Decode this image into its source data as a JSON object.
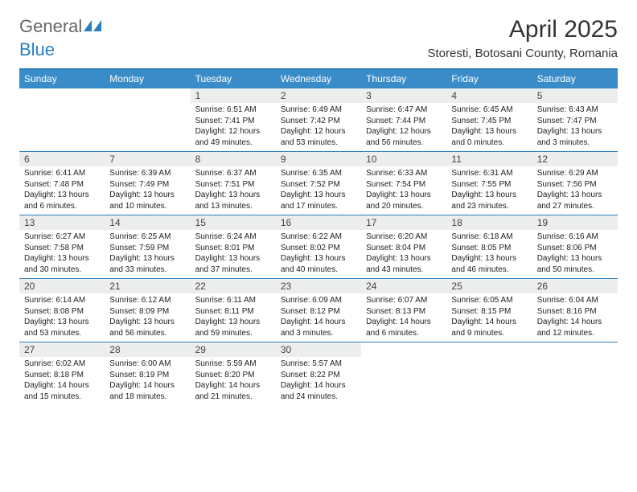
{
  "logo": {
    "text1": "General",
    "text2": "Blue"
  },
  "title": "April 2025",
  "location": "Storesti, Botosani County, Romania",
  "colors": {
    "header_bg": "#3a8cc9",
    "border": "#2a7fbf",
    "daynum_bg": "#eceded",
    "text": "#222222"
  },
  "weekdays": [
    "Sunday",
    "Monday",
    "Tuesday",
    "Wednesday",
    "Thursday",
    "Friday",
    "Saturday"
  ],
  "weeks": [
    [
      {
        "empty": true
      },
      {
        "empty": true
      },
      {
        "n": "1",
        "sr": "Sunrise: 6:51 AM",
        "ss": "Sunset: 7:41 PM",
        "dl": "Daylight: 12 hours and 49 minutes."
      },
      {
        "n": "2",
        "sr": "Sunrise: 6:49 AM",
        "ss": "Sunset: 7:42 PM",
        "dl": "Daylight: 12 hours and 53 minutes."
      },
      {
        "n": "3",
        "sr": "Sunrise: 6:47 AM",
        "ss": "Sunset: 7:44 PM",
        "dl": "Daylight: 12 hours and 56 minutes."
      },
      {
        "n": "4",
        "sr": "Sunrise: 6:45 AM",
        "ss": "Sunset: 7:45 PM",
        "dl": "Daylight: 13 hours and 0 minutes."
      },
      {
        "n": "5",
        "sr": "Sunrise: 6:43 AM",
        "ss": "Sunset: 7:47 PM",
        "dl": "Daylight: 13 hours and 3 minutes."
      }
    ],
    [
      {
        "n": "6",
        "sr": "Sunrise: 6:41 AM",
        "ss": "Sunset: 7:48 PM",
        "dl": "Daylight: 13 hours and 6 minutes."
      },
      {
        "n": "7",
        "sr": "Sunrise: 6:39 AM",
        "ss": "Sunset: 7:49 PM",
        "dl": "Daylight: 13 hours and 10 minutes."
      },
      {
        "n": "8",
        "sr": "Sunrise: 6:37 AM",
        "ss": "Sunset: 7:51 PM",
        "dl": "Daylight: 13 hours and 13 minutes."
      },
      {
        "n": "9",
        "sr": "Sunrise: 6:35 AM",
        "ss": "Sunset: 7:52 PM",
        "dl": "Daylight: 13 hours and 17 minutes."
      },
      {
        "n": "10",
        "sr": "Sunrise: 6:33 AM",
        "ss": "Sunset: 7:54 PM",
        "dl": "Daylight: 13 hours and 20 minutes."
      },
      {
        "n": "11",
        "sr": "Sunrise: 6:31 AM",
        "ss": "Sunset: 7:55 PM",
        "dl": "Daylight: 13 hours and 23 minutes."
      },
      {
        "n": "12",
        "sr": "Sunrise: 6:29 AM",
        "ss": "Sunset: 7:56 PM",
        "dl": "Daylight: 13 hours and 27 minutes."
      }
    ],
    [
      {
        "n": "13",
        "sr": "Sunrise: 6:27 AM",
        "ss": "Sunset: 7:58 PM",
        "dl": "Daylight: 13 hours and 30 minutes."
      },
      {
        "n": "14",
        "sr": "Sunrise: 6:25 AM",
        "ss": "Sunset: 7:59 PM",
        "dl": "Daylight: 13 hours and 33 minutes."
      },
      {
        "n": "15",
        "sr": "Sunrise: 6:24 AM",
        "ss": "Sunset: 8:01 PM",
        "dl": "Daylight: 13 hours and 37 minutes."
      },
      {
        "n": "16",
        "sr": "Sunrise: 6:22 AM",
        "ss": "Sunset: 8:02 PM",
        "dl": "Daylight: 13 hours and 40 minutes."
      },
      {
        "n": "17",
        "sr": "Sunrise: 6:20 AM",
        "ss": "Sunset: 8:04 PM",
        "dl": "Daylight: 13 hours and 43 minutes."
      },
      {
        "n": "18",
        "sr": "Sunrise: 6:18 AM",
        "ss": "Sunset: 8:05 PM",
        "dl": "Daylight: 13 hours and 46 minutes."
      },
      {
        "n": "19",
        "sr": "Sunrise: 6:16 AM",
        "ss": "Sunset: 8:06 PM",
        "dl": "Daylight: 13 hours and 50 minutes."
      }
    ],
    [
      {
        "n": "20",
        "sr": "Sunrise: 6:14 AM",
        "ss": "Sunset: 8:08 PM",
        "dl": "Daylight: 13 hours and 53 minutes."
      },
      {
        "n": "21",
        "sr": "Sunrise: 6:12 AM",
        "ss": "Sunset: 8:09 PM",
        "dl": "Daylight: 13 hours and 56 minutes."
      },
      {
        "n": "22",
        "sr": "Sunrise: 6:11 AM",
        "ss": "Sunset: 8:11 PM",
        "dl": "Daylight: 13 hours and 59 minutes."
      },
      {
        "n": "23",
        "sr": "Sunrise: 6:09 AM",
        "ss": "Sunset: 8:12 PM",
        "dl": "Daylight: 14 hours and 3 minutes."
      },
      {
        "n": "24",
        "sr": "Sunrise: 6:07 AM",
        "ss": "Sunset: 8:13 PM",
        "dl": "Daylight: 14 hours and 6 minutes."
      },
      {
        "n": "25",
        "sr": "Sunrise: 6:05 AM",
        "ss": "Sunset: 8:15 PM",
        "dl": "Daylight: 14 hours and 9 minutes."
      },
      {
        "n": "26",
        "sr": "Sunrise: 6:04 AM",
        "ss": "Sunset: 8:16 PM",
        "dl": "Daylight: 14 hours and 12 minutes."
      }
    ],
    [
      {
        "n": "27",
        "sr": "Sunrise: 6:02 AM",
        "ss": "Sunset: 8:18 PM",
        "dl": "Daylight: 14 hours and 15 minutes."
      },
      {
        "n": "28",
        "sr": "Sunrise: 6:00 AM",
        "ss": "Sunset: 8:19 PM",
        "dl": "Daylight: 14 hours and 18 minutes."
      },
      {
        "n": "29",
        "sr": "Sunrise: 5:59 AM",
        "ss": "Sunset: 8:20 PM",
        "dl": "Daylight: 14 hours and 21 minutes."
      },
      {
        "n": "30",
        "sr": "Sunrise: 5:57 AM",
        "ss": "Sunset: 8:22 PM",
        "dl": "Daylight: 14 hours and 24 minutes."
      },
      {
        "empty": true
      },
      {
        "empty": true
      },
      {
        "empty": true
      }
    ]
  ]
}
